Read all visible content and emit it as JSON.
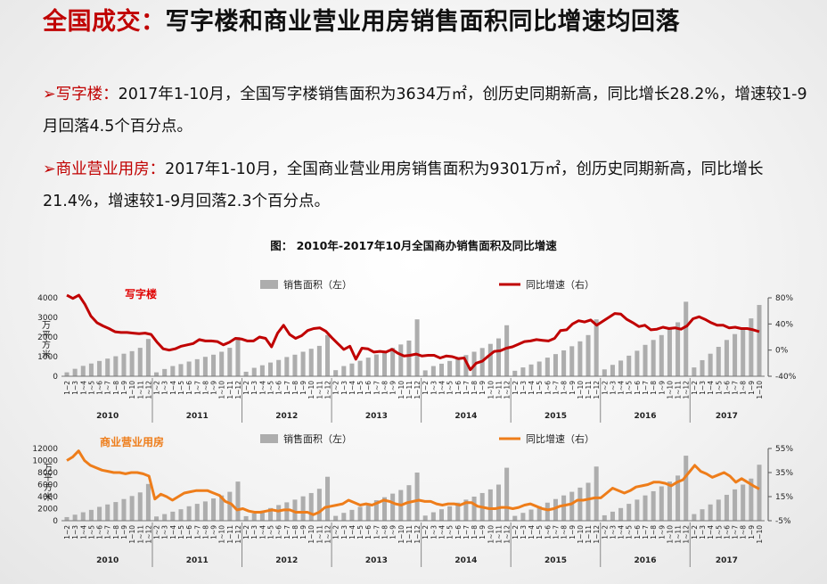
{
  "header": {
    "title_prefix": "全国成交：",
    "title_rest": "写字楼和商业营业用房销售面积同比增速均回落"
  },
  "paragraphs": [
    {
      "bullet": "➢",
      "label": "写字楼：",
      "text": "2017年1-10月，全国写字楼销售面积为3634万㎡，创历史同期新高，同比增长28.2%，增速较1-9月回落4.5个百分点。"
    },
    {
      "bullet": "➢",
      "label": "商业营业用房：",
      "text": "2017年1-10月，全国商业营业用房销售面积为9301万㎡，创历史同期新高，同比增长21.4%，增速较1-9月回落2.3个百分点。"
    }
  ],
  "figure": {
    "title": "图： 2010年-2017年10月全国商办销售面积及同比增速"
  },
  "colors": {
    "accent_red": "#c00000",
    "office_line": "#c00000",
    "office_label": "#e00000",
    "retail_line": "#ee7d1a",
    "retail_label": "#ee7d1a",
    "bar": "#aaaaaa"
  },
  "chart_data": [
    {
      "type": "bar+line",
      "title": "写字楼",
      "ylabel": "万平方米",
      "y_left_lim": [
        0,
        4000
      ],
      "y_left_ticks": [
        "0",
        "1000",
        "2000",
        "3000",
        "4000"
      ],
      "y_right_lim": [
        -40,
        80
      ],
      "y_right_ticks": [
        "-40%",
        "0%",
        "40%",
        "80%"
      ],
      "legend_position": "top",
      "years": [
        "2010",
        "2011",
        "2012",
        "2013",
        "2014",
        "2015",
        "2016",
        "2017"
      ],
      "months_per_year": [
        [
          "1~2",
          "1~3",
          "1~4",
          "1~5",
          "1~6",
          "1~7",
          "1~8",
          "1~9",
          "1~10",
          "1~11",
          "1~12"
        ],
        [
          "1~2",
          "1~3",
          "1~4",
          "1~5",
          "1~6",
          "1~7",
          "1~8",
          "1~9",
          "1~10",
          "1~11",
          "1~12"
        ],
        [
          "1~2",
          "1~3",
          "1~4",
          "1~5",
          "1~6",
          "1~7",
          "1~8",
          "1~9",
          "1~10",
          "1~11",
          "1~12"
        ],
        [
          "1~2",
          "1~3",
          "1~4",
          "1~5",
          "1~6",
          "1~7",
          "1~8",
          "1~9",
          "1~10",
          "1~11",
          "1~12"
        ],
        [
          "1~2",
          "1~3",
          "1~4",
          "1~5",
          "1~6",
          "1~7",
          "1~8",
          "1~9",
          "1~10",
          "1~11",
          "1~12"
        ],
        [
          "1~2",
          "1~3",
          "1~4",
          "1~5",
          "1~6",
          "1~7",
          "1~8",
          "1~9",
          "1~10",
          "1~11",
          "1~12"
        ],
        [
          "1~2",
          "1~3",
          "1~4",
          "1~5",
          "1~6",
          "1~7",
          "1~8",
          "1~9",
          "1~10",
          "1~11",
          "1~12"
        ],
        [
          "1~2",
          "1~3",
          "1~4",
          "1~5",
          "1~6",
          "1~7",
          "1~8",
          "1~9",
          "1~10"
        ]
      ],
      "series": [
        {
          "name": "销售面积（左）",
          "axis": "left",
          "kind": "bar",
          "values": [
            200,
            380,
            530,
            650,
            780,
            900,
            1020,
            1150,
            1280,
            1450,
            1900,
            200,
            370,
            520,
            620,
            750,
            870,
            990,
            1100,
            1250,
            1450,
            2000,
            230,
            430,
            560,
            700,
            830,
            980,
            1100,
            1250,
            1400,
            1550,
            2100,
            310,
            520,
            650,
            790,
            950,
            1110,
            1250,
            1450,
            1620,
            1820,
            2900,
            300,
            520,
            640,
            780,
            930,
            1080,
            1250,
            1440,
            1650,
            1930,
            2600,
            280,
            450,
            600,
            750,
            950,
            1130,
            1320,
            1530,
            1780,
            2100,
            2900,
            350,
            580,
            800,
            1050,
            1300,
            1600,
            1850,
            2100,
            2400,
            2750,
            3800,
            450,
            820,
            1150,
            1500,
            1850,
            2150,
            2500,
            2950,
            3634
          ]
        },
        {
          "name": "同比增速（右）",
          "axis": "right",
          "kind": "line",
          "values": [
            84,
            79,
            84,
            70,
            52,
            42,
            37,
            33,
            28,
            27,
            27,
            26,
            25,
            26,
            24,
            12,
            2,
            0,
            2,
            6,
            8,
            10,
            16,
            14,
            14,
            13,
            8,
            12,
            18,
            17,
            14,
            14,
            20,
            18,
            5,
            26,
            38,
            24,
            18,
            22,
            30,
            33,
            34,
            29,
            19,
            10,
            1,
            6,
            -14,
            3,
            2,
            -3,
            -2,
            -3,
            1,
            -5,
            -9,
            -8,
            -6,
            -9,
            -8,
            -8,
            -12,
            -9,
            -10,
            -13,
            -12,
            -30,
            -20,
            -17,
            -9,
            -2,
            -1,
            3,
            5,
            9,
            13,
            14,
            16,
            15,
            14,
            18,
            30,
            31,
            40,
            45,
            43,
            46,
            38,
            44,
            50,
            56,
            55,
            47,
            42,
            36,
            38,
            31,
            32,
            35,
            33,
            34,
            32,
            37,
            48,
            51,
            47,
            42,
            38,
            38,
            34,
            35,
            33,
            33,
            31,
            28.2
          ]
        }
      ]
    },
    {
      "type": "bar+line",
      "title": "商业营业用房",
      "ylabel": "万平方米",
      "y_left_lim": [
        0,
        12000
      ],
      "y_left_ticks": [
        "0",
        "2000",
        "4000",
        "6000",
        "8000",
        "10000",
        "12000"
      ],
      "y_right_lim": [
        -5,
        55
      ],
      "y_right_ticks": [
        "-5%",
        "15%",
        "35%",
        "55%"
      ],
      "legend_position": "top",
      "years": [
        "2010",
        "2011",
        "2012",
        "2013",
        "2014",
        "2015",
        "2016",
        "2017"
      ],
      "series": [
        {
          "name": "销售面积（左）",
          "axis": "left",
          "kind": "bar",
          "values": [
            600,
            1000,
            1400,
            1800,
            2300,
            2700,
            3100,
            3600,
            4100,
            4700,
            6100,
            700,
            1100,
            1500,
            1900,
            2400,
            2800,
            3200,
            3700,
            4200,
            4800,
            6500,
            750,
            1200,
            1650,
            2100,
            2600,
            3050,
            3500,
            4050,
            4600,
            5300,
            7300,
            800,
            1300,
            1800,
            2300,
            2900,
            3400,
            3900,
            4500,
            5100,
            5900,
            8000,
            850,
            1400,
            1900,
            2400,
            3000,
            3500,
            4000,
            4600,
            5200,
            6000,
            8800,
            800,
            1300,
            1850,
            2400,
            3000,
            3600,
            4200,
            4800,
            5500,
            6300,
            9000,
            900,
            1500,
            2100,
            2800,
            3500,
            4200,
            4900,
            5700,
            6500,
            7500,
            10800,
            1100,
            1900,
            2700,
            3500,
            4300,
            5200,
            6000,
            7000,
            9301
          ]
        },
        {
          "name": "同比增速（右）",
          "axis": "right",
          "kind": "line",
          "values": [
            45,
            48,
            53,
            45,
            41,
            39,
            37,
            36,
            35,
            35,
            34,
            35,
            35,
            34,
            32,
            13,
            17,
            15,
            12,
            15,
            18,
            19,
            20,
            20,
            20,
            18,
            16,
            11,
            9,
            4,
            5,
            3,
            2,
            2,
            3,
            4,
            3,
            4,
            4,
            2,
            2,
            2,
            0,
            2,
            6,
            7,
            8,
            9,
            12,
            10,
            8,
            9,
            8,
            10,
            12,
            11,
            9,
            8,
            10,
            11,
            12,
            11,
            11,
            9,
            8,
            9,
            9,
            8,
            10,
            10,
            7,
            6,
            5,
            5,
            6,
            6,
            5,
            6,
            8,
            9,
            7,
            5,
            4,
            5,
            7,
            8,
            9,
            12,
            12,
            13,
            14,
            14,
            18,
            22,
            20,
            18,
            20,
            23,
            24,
            25,
            27,
            27,
            26,
            24,
            27,
            29,
            35,
            41,
            36,
            34,
            31,
            33,
            35,
            32,
            27,
            30,
            27,
            24,
            21.4
          ]
        }
      ]
    }
  ]
}
